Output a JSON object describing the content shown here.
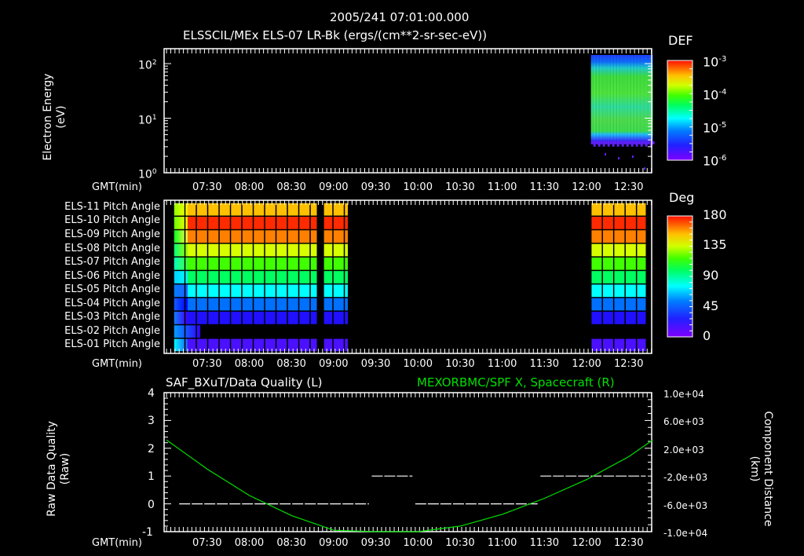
{
  "header": {
    "timestamp": "2005/241 07:01:00.000",
    "subtitle": "ELSSCIL/MEx ELS-07 LR-Bk  (ergs/(cm**2-sr-sec-eV))"
  },
  "time_axis": {
    "label": "GMT(min)",
    "ticks": [
      "07:30",
      "08:00",
      "08:30",
      "09:00",
      "09:30",
      "10:00",
      "10:30",
      "11:00",
      "11:30",
      "12:00",
      "12:30"
    ]
  },
  "panel1": {
    "ylabel_line1": "Electron Energy",
    "ylabel_line2": "(eV)",
    "yticks": [
      {
        "base": "10",
        "exp": "2"
      },
      {
        "base": "10",
        "exp": "1"
      },
      {
        "base": "10",
        "exp": "0"
      }
    ],
    "colorbar": {
      "title": "DEF",
      "ticks": [
        {
          "base": "10",
          "exp": "-3"
        },
        {
          "base": "10",
          "exp": "-4"
        },
        {
          "base": "10",
          "exp": "-5"
        },
        {
          "base": "10",
          "exp": "-6"
        }
      ]
    }
  },
  "panel2": {
    "rows": [
      "ELS-11 Pitch Angle",
      "ELS-10 Pitch Angle",
      "ELS-09 Pitch Angle",
      "ELS-08 Pitch Angle",
      "ELS-07 Pitch Angle",
      "ELS-06 Pitch Angle",
      "ELS-05 Pitch Angle",
      "ELS-04 Pitch Angle",
      "ELS-03 Pitch Angle",
      "ELS-02 Pitch Angle",
      "ELS-01 Pitch Angle"
    ],
    "colorbar": {
      "title": "Deg",
      "ticks": [
        "180",
        "135",
        "90",
        "45",
        "0"
      ]
    }
  },
  "panel3": {
    "title_left": "SAF_BXuT/Data Quality (L)",
    "title_right": "MEXORBMC/SPF X, Spacecraft (R)",
    "ylabel_left_line1": "Raw Data Quality",
    "ylabel_left_line2": "(Raw)",
    "ylabel_right_line1": "Component Distance",
    "ylabel_right_line2": "(km)",
    "yticks_left": [
      "4",
      "3",
      "2",
      "1",
      "0",
      "-1"
    ],
    "yticks_right": [
      "1.0e+04",
      "6.0e+03",
      "2.0e+03",
      "-2.0e+03",
      "-6.0e+03",
      "-1.0e+04"
    ]
  },
  "colors": {
    "background": "#000000",
    "axes": "#ffffff",
    "spacecraft_line": "#00e000"
  },
  "chart_data": [
    {
      "type": "heatmap",
      "title": "ELSSCIL/MEx ELS-07 LR-Bk (ergs/(cm**2-sr-sec-eV))",
      "xlabel": "GMT(min)",
      "ylabel": "Electron Energy (eV)",
      "yscale": "log",
      "ylim": [
        1,
        200
      ],
      "x_range": [
        "07:01",
        "12:47"
      ],
      "colorbar": {
        "label": "DEF",
        "scale": "log",
        "range": [
          1e-06,
          0.001
        ]
      },
      "data_coverage": [
        {
          "start": "12:03",
          "end": "12:47",
          "energy_range_eV": [
            3,
            150
          ],
          "typical_DEF": 5e-05
        }
      ]
    },
    {
      "type": "heatmap",
      "title": "ELS Pitch Angle",
      "xlabel": "GMT(min)",
      "categories": [
        "ELS-11",
        "ELS-10",
        "ELS-09",
        "ELS-08",
        "ELS-07",
        "ELS-06",
        "ELS-05",
        "ELS-04",
        "ELS-03",
        "ELS-02",
        "ELS-01"
      ],
      "colorbar": {
        "label": "Deg",
        "range": [
          0,
          180
        ]
      },
      "typical_values_deg": [
        150,
        170,
        160,
        130,
        110,
        95,
        75,
        55,
        35,
        null,
        20
      ],
      "data_intervals": [
        {
          "start": "07:05",
          "end": "08:47"
        },
        {
          "start": "08:52",
          "end": "09:10"
        },
        {
          "start": "12:03",
          "end": "12:42"
        }
      ]
    },
    {
      "type": "line",
      "title": "SAF_BXuT/Data Quality (L) ; MEXORBMC/SPF X, Spacecraft (R)",
      "xlabel": "GMT(min)",
      "ylabel": "Raw Data Quality (Raw)",
      "ylabel_right": "Component Distance (km)",
      "ylim": [
        -1,
        4
      ],
      "ylim_right": [
        -10000,
        10000
      ],
      "series": [
        {
          "name": "Data Quality (L)",
          "axis": "left",
          "points": [
            [
              "07:10",
              0
            ],
            [
              "09:25",
              0
            ],
            [
              "09:27",
              1
            ],
            [
              "09:56",
              1
            ],
            [
              "09:58",
              0
            ],
            [
              "11:25",
              0
            ],
            [
              "11:27",
              1
            ],
            [
              "12:42",
              1
            ]
          ]
        },
        {
          "name": "SPF X Spacecraft (R)",
          "axis": "right",
          "points": [
            [
              "07:01",
              3200
            ],
            [
              "07:30",
              -1000
            ],
            [
              "08:00",
              -4800
            ],
            [
              "08:30",
              -7700
            ],
            [
              "09:00",
              -9800
            ],
            [
              "09:30",
              -10600
            ],
            [
              "10:00",
              -10500
            ],
            [
              "10:30",
              -9200
            ],
            [
              "11:00",
              -7500
            ],
            [
              "11:30",
              -5200
            ],
            [
              "12:00",
              -2500
            ],
            [
              "12:30",
              800
            ],
            [
              "12:47",
              3200
            ]
          ]
        }
      ]
    }
  ]
}
